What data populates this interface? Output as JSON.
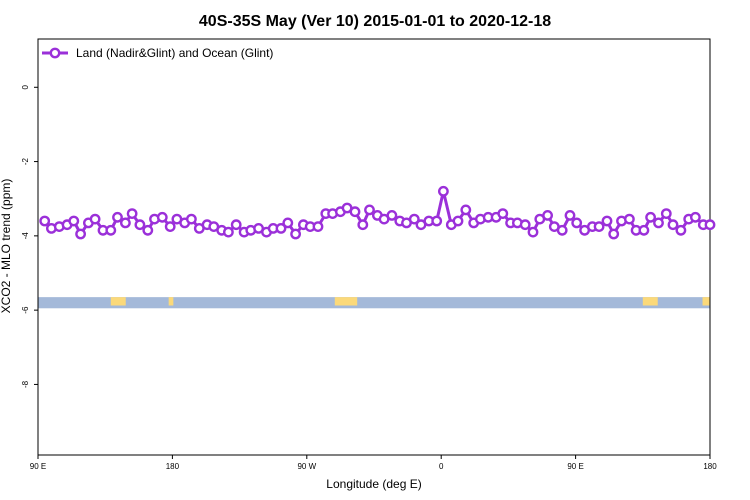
{
  "chart_data": {
    "type": "line",
    "title": "40S-35S May (Ver 10)   2015-01-01 to 2020-12-18",
    "xlabel": "Longitude (deg E)",
    "ylabel": "XCO2 - MLO trend (ppm)",
    "xlim": [
      90,
      450
    ],
    "ylim": [
      -9.9,
      1.3
    ],
    "x_ticks": [
      {
        "value": 90,
        "label": "90 E"
      },
      {
        "value": 162,
        "label": "180"
      },
      {
        "value": 234,
        "label": "90 W"
      },
      {
        "value": 306,
        "label": "0"
      },
      {
        "value": 378,
        "label": "90 E"
      },
      {
        "value": 450,
        "label": "180"
      }
    ],
    "y_ticks": [
      {
        "value": 0,
        "label": "0"
      },
      {
        "value": -2,
        "label": "-2"
      },
      {
        "value": -4,
        "label": "-4"
      },
      {
        "value": -6,
        "label": "-6"
      },
      {
        "value": -8,
        "label": "-8"
      }
    ],
    "grid": false,
    "legend_position": "top-left",
    "series": [
      {
        "name": "Land (Nadir&Glint) and Ocean (Glint)",
        "color": "#9b30d9",
        "x": [
          93.6,
          97.2,
          101.4,
          105.6,
          109.2,
          112.8,
          117.0,
          120.6,
          124.8,
          129.0,
          132.6,
          136.8,
          140.4,
          144.6,
          148.8,
          152.4,
          156.6,
          160.8,
          164.4,
          168.6,
          172.2,
          176.4,
          180.6,
          184.2,
          188.4,
          192.0,
          196.2,
          200.4,
          204.0,
          208.2,
          212.4,
          216.0,
          220.2,
          223.8,
          228.0,
          232.2,
          235.8,
          240.0,
          244.2,
          247.8,
          252.0,
          255.6,
          259.8,
          264.0,
          267.6,
          271.8,
          275.4,
          279.6,
          283.8,
          287.4,
          291.6,
          295.2,
          299.4,
          303.6,
          307.2,
          311.4,
          315.0,
          319.2,
          323.4,
          327.0,
          331.2,
          335.4,
          339.0,
          343.2,
          346.8,
          351.0,
          355.2,
          358.8,
          363.0,
          366.6,
          370.8,
          375.0,
          378.6,
          382.8,
          387.0,
          390.6,
          394.8,
          398.4,
          402.6,
          406.8,
          410.4,
          414.6,
          418.2,
          422.4,
          426.6,
          430.2,
          434.4,
          438.6,
          442.2,
          446.4,
          450.0
        ],
        "values": [
          -3.6,
          -3.8,
          -3.75,
          -3.7,
          -3.6,
          -3.95,
          -3.65,
          -3.55,
          -3.85,
          -3.85,
          -3.5,
          -3.65,
          -3.4,
          -3.7,
          -3.85,
          -3.55,
          -3.5,
          -3.75,
          -3.55,
          -3.65,
          -3.55,
          -3.8,
          -3.7,
          -3.75,
          -3.85,
          -3.9,
          -3.7,
          -3.9,
          -3.85,
          -3.8,
          -3.9,
          -3.8,
          -3.8,
          -3.65,
          -3.95,
          -3.7,
          -3.75,
          -3.75,
          -3.4,
          -3.4,
          -3.35,
          -3.25,
          -3.35,
          -3.7,
          -3.3,
          -3.45,
          -3.55,
          -3.45,
          -3.6,
          -3.65,
          -3.55,
          -3.7,
          -3.6,
          -3.6,
          -2.8,
          -3.7,
          -3.6,
          -3.3,
          -3.65,
          -3.55,
          -3.5,
          -3.5,
          -3.4,
          -3.65,
          -3.65,
          -3.7,
          -3.9,
          -3.55,
          -3.45,
          -3.75,
          -3.85,
          -3.45,
          -3.65,
          -3.85,
          -3.75,
          -3.75,
          -3.6,
          -3.95,
          -3.6,
          -3.55,
          -3.85,
          -3.85,
          -3.5,
          -3.65,
          -3.4,
          -3.7,
          -3.85,
          -3.55,
          -3.5,
          -3.7,
          -3.7
        ]
      }
    ],
    "map_strip": {
      "y_range": [
        -5.95,
        -5.65
      ],
      "ocean_color": "#a4b9d9",
      "land_color": "#fbd97a",
      "land_spans": [
        {
          "x": [
            129,
            137
          ]
        },
        {
          "x": [
            160,
            162.5
          ]
        },
        {
          "x": [
            249,
            261
          ]
        },
        {
          "x": [
            414,
            422
          ]
        },
        {
          "x": [
            446,
            450
          ]
        }
      ]
    }
  }
}
